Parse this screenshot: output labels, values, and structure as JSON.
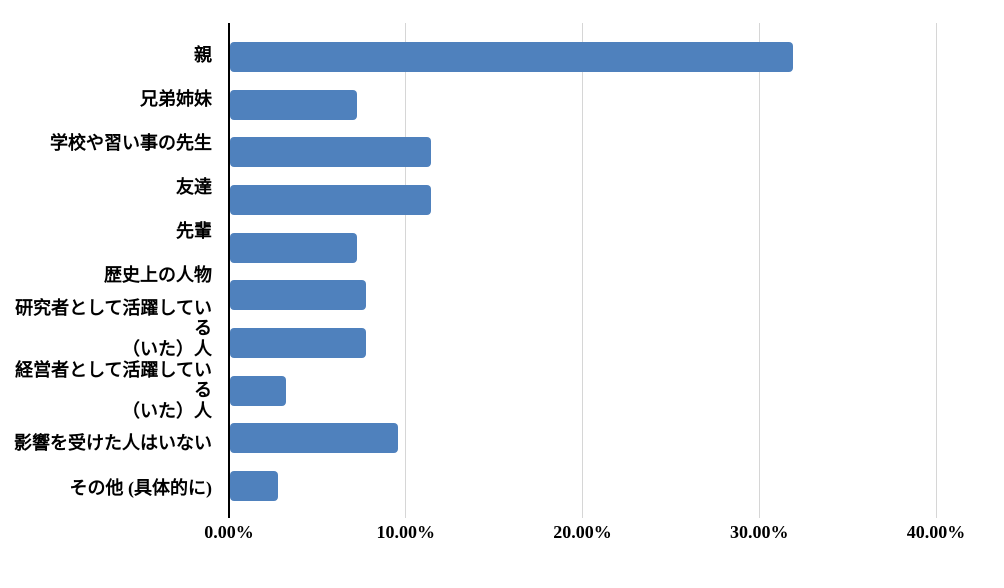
{
  "chart_data": {
    "type": "bar",
    "orientation": "horizontal",
    "unit": "%",
    "categories": [
      "親",
      "兄弟姉妹",
      "学校や習い事の先生",
      "友達",
      "先輩",
      "歴史上の人物",
      "研究者として活躍している\n（いた）人",
      "経営者として活躍している\n（いた）人",
      "影響を受けた人はいない",
      "その他 (具体的に)"
    ],
    "values": [
      31.9,
      7.2,
      11.4,
      11.4,
      7.2,
      7.7,
      7.7,
      3.2,
      9.5,
      2.7
    ],
    "x_tick_labels": [
      "0.00%",
      "10.00%",
      "20.00%",
      "30.00%",
      "40.00%"
    ],
    "xlim": [
      0,
      40
    ],
    "x_tick_step": 10,
    "grid": true,
    "legend_position": "none",
    "colors": {
      "bar": "#4F81BD",
      "gridline": "#D6D6D6",
      "axis": "#000000",
      "text": "#000000",
      "background": "#FFFFFF"
    }
  }
}
